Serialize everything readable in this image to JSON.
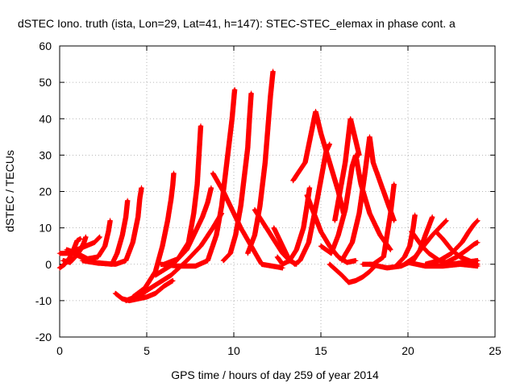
{
  "chart_data": {
    "type": "scatter",
    "title": "dSTEC Iono. truth (ista, Lon=29, Lat=41, h=147): STEC-STEC_elemax in phase cont. a",
    "xlabel": "GPS time / hours of day 259 of year 2014",
    "ylabel": "dSTEC  / TECUs",
    "xlim": [
      0,
      25
    ],
    "ylim": [
      -20,
      60
    ],
    "xticks": [
      "0",
      "5",
      "10",
      "15",
      "20",
      "25"
    ],
    "yticks": [
      "-20",
      "-10",
      "0",
      "10",
      "20",
      "30",
      "40",
      "50",
      "60"
    ],
    "grid": true,
    "marker": "+",
    "color": "#ff0000",
    "series": [
      {
        "points": [
          [
            0,
            -1
          ],
          [
            0.3,
            0
          ],
          [
            0.6,
            2
          ],
          [
            0.8,
            4
          ],
          [
            1.0,
            6.5
          ],
          [
            1.2,
            7
          ]
        ]
      },
      {
        "points": [
          [
            0.2,
            1
          ],
          [
            0.6,
            0.5
          ],
          [
            0.9,
            2
          ],
          [
            1.2,
            4
          ],
          [
            1.4,
            6
          ],
          [
            1.5,
            7.5
          ]
        ]
      },
      {
        "points": [
          [
            0,
            3
          ],
          [
            0.5,
            3
          ],
          [
            1,
            4
          ],
          [
            1.5,
            5
          ],
          [
            2,
            6
          ],
          [
            2.3,
            7.5
          ]
        ]
      },
      {
        "points": [
          [
            0.4,
            4
          ],
          [
            1,
            3
          ],
          [
            1.6,
            1.5
          ],
          [
            2.2,
            2
          ],
          [
            2.6,
            5
          ],
          [
            2.8,
            9
          ],
          [
            2.9,
            12
          ]
        ]
      },
      {
        "points": [
          [
            0.8,
            3
          ],
          [
            1.3,
            1.8
          ],
          [
            2,
            0.5
          ],
          [
            3,
            0
          ],
          [
            3.3,
            3
          ],
          [
            3.6,
            8
          ],
          [
            3.8,
            13
          ],
          [
            3.9,
            17.5
          ]
        ]
      },
      {
        "points": [
          [
            1.3,
            1
          ],
          [
            2.2,
            0.3
          ],
          [
            3.2,
            0
          ],
          [
            3.8,
            1
          ],
          [
            4.2,
            6
          ],
          [
            4.5,
            13
          ],
          [
            4.6,
            18
          ],
          [
            4.7,
            21
          ]
        ]
      },
      {
        "points": [
          [
            3.2,
            -8
          ],
          [
            3.6,
            -9.5
          ],
          [
            4,
            -10
          ],
          [
            4.5,
            -9.5
          ],
          [
            5,
            -9
          ],
          [
            5.5,
            -8
          ],
          [
            6,
            -6
          ],
          [
            6.5,
            -4.5
          ]
        ]
      },
      {
        "points": [
          [
            3.8,
            -10
          ],
          [
            4.6,
            -8.5
          ],
          [
            5.4,
            -6
          ],
          [
            6.4,
            -3
          ],
          [
            7.3,
            1
          ],
          [
            8.1,
            5
          ],
          [
            8.8,
            10
          ],
          [
            9.3,
            14
          ]
        ]
      },
      {
        "points": [
          [
            4.2,
            -9
          ],
          [
            4.9,
            -6.5
          ],
          [
            5.5,
            -2
          ],
          [
            5.9,
            5
          ],
          [
            6.2,
            12
          ],
          [
            6.4,
            18
          ],
          [
            6.5,
            22
          ],
          [
            6.55,
            25
          ]
        ]
      },
      {
        "points": [
          [
            5.5,
            -3
          ],
          [
            6.5,
            0
          ],
          [
            7.3,
            4
          ],
          [
            7.8,
            9
          ],
          [
            8.2,
            13
          ],
          [
            8.5,
            17
          ],
          [
            8.7,
            21
          ]
        ]
      },
      {
        "points": [
          [
            6,
            0
          ],
          [
            6.8,
            1.5
          ],
          [
            7.4,
            6
          ],
          [
            7.7,
            14
          ],
          [
            7.9,
            22
          ],
          [
            8.0,
            30
          ],
          [
            8.1,
            38
          ]
        ]
      },
      {
        "points": [
          [
            5.8,
            0
          ],
          [
            6.8,
            -0.5
          ],
          [
            7.8,
            -0.5
          ],
          [
            8.5,
            1
          ],
          [
            9,
            8
          ],
          [
            9.3,
            16
          ],
          [
            9.5,
            24
          ],
          [
            9.7,
            32
          ],
          [
            9.9,
            40
          ],
          [
            10.05,
            48
          ]
        ]
      },
      {
        "points": [
          [
            9.4,
            1
          ],
          [
            9.8,
            3
          ],
          [
            10.1,
            8
          ],
          [
            10.4,
            16
          ],
          [
            10.6,
            24
          ],
          [
            10.8,
            32
          ],
          [
            10.9,
            40
          ],
          [
            11.0,
            47
          ]
        ]
      },
      {
        "points": [
          [
            8.8,
            25
          ],
          [
            9.4,
            20
          ],
          [
            9.9,
            15
          ],
          [
            10.4,
            10
          ],
          [
            11.0,
            5
          ],
          [
            11.6,
            0
          ],
          [
            12.2,
            -0.5
          ],
          [
            12.8,
            -1
          ]
        ]
      },
      {
        "points": [
          [
            10.8,
            3
          ],
          [
            11.2,
            8
          ],
          [
            11.5,
            16
          ],
          [
            11.8,
            28
          ],
          [
            12.0,
            40
          ],
          [
            12.1,
            46
          ],
          [
            12.25,
            53
          ]
        ]
      },
      {
        "points": [
          [
            12.5,
            2
          ],
          [
            12.8,
            0
          ],
          [
            13.2,
            1
          ],
          [
            13.6,
            4
          ],
          [
            14.0,
            10
          ],
          [
            14.2,
            16
          ],
          [
            14.35,
            21
          ]
        ]
      },
      {
        "points": [
          [
            11.2,
            15
          ],
          [
            11.6,
            12
          ],
          [
            12.0,
            9
          ],
          [
            12.4,
            6
          ],
          [
            12.8,
            3
          ],
          [
            13.2,
            1
          ],
          [
            13.6,
            0
          ]
        ]
      },
      {
        "points": [
          [
            12.3,
            10
          ],
          [
            12.7,
            6
          ],
          [
            13.1,
            2
          ],
          [
            13.5,
            0
          ],
          [
            13.8,
            1
          ],
          [
            14.3,
            6
          ],
          [
            14.8,
            18
          ],
          [
            15.3,
            31
          ],
          [
            15.5,
            33
          ]
        ]
      },
      {
        "points": [
          [
            14.2,
            19
          ],
          [
            14.6,
            14
          ],
          [
            15.0,
            9
          ],
          [
            15.5,
            5
          ],
          [
            16.0,
            2
          ],
          [
            16.5,
            0.5
          ],
          [
            17.0,
            1
          ]
        ]
      },
      {
        "points": [
          [
            13.4,
            23
          ],
          [
            14.1,
            28
          ],
          [
            14.7,
            42
          ],
          [
            15.0,
            36
          ],
          [
            15.5,
            28
          ],
          [
            16.0,
            20
          ],
          [
            16.3,
            14
          ]
        ]
      },
      {
        "points": [
          [
            15.5,
            0
          ],
          [
            16.2,
            -3
          ],
          [
            16.6,
            -5
          ],
          [
            17.0,
            -4.5
          ],
          [
            17.4,
            -3.5
          ],
          [
            17.8,
            -2
          ],
          [
            18.2,
            0
          ]
        ]
      },
      {
        "points": [
          [
            15.8,
            12
          ],
          [
            16.1,
            20
          ],
          [
            16.4,
            28
          ],
          [
            16.6,
            36
          ],
          [
            16.7,
            40
          ],
          [
            16.9,
            36
          ],
          [
            17.2,
            30
          ]
        ]
      },
      {
        "points": [
          [
            15.0,
            5
          ],
          [
            15.6,
            3
          ],
          [
            16.0,
            8
          ],
          [
            16.4,
            15
          ],
          [
            16.8,
            27
          ],
          [
            17.0,
            30
          ],
          [
            17.3,
            22
          ],
          [
            17.8,
            14
          ],
          [
            18.4,
            8
          ],
          [
            19.0,
            4
          ]
        ]
      },
      {
        "points": [
          [
            16.2,
            1
          ],
          [
            16.8,
            6
          ],
          [
            17.2,
            14
          ],
          [
            17.5,
            24
          ],
          [
            17.8,
            35
          ],
          [
            18.0,
            28
          ],
          [
            18.6,
            20
          ],
          [
            19.2,
            12
          ]
        ]
      },
      {
        "points": [
          [
            17.4,
            0
          ],
          [
            18.0,
            0
          ],
          [
            18.6,
            2
          ],
          [
            18.8,
            8
          ],
          [
            19.0,
            14
          ],
          [
            19.2,
            22
          ]
        ]
      },
      {
        "points": [
          [
            17.8,
            0
          ],
          [
            18.8,
            -1
          ],
          [
            19.6,
            -0.5
          ],
          [
            20.3,
            1
          ],
          [
            20.7,
            4
          ],
          [
            21.0,
            8
          ],
          [
            21.4,
            13
          ]
        ]
      },
      {
        "points": [
          [
            19.4,
            0
          ],
          [
            19.8,
            2
          ],
          [
            20.1,
            5
          ],
          [
            20.3,
            10
          ],
          [
            20.4,
            13.5
          ]
        ]
      },
      {
        "points": [
          [
            19.8,
            0
          ],
          [
            20.4,
            2
          ],
          [
            20.9,
            5
          ],
          [
            21.4,
            8
          ],
          [
            21.8,
            10
          ],
          [
            22.2,
            12
          ]
        ]
      },
      {
        "points": [
          [
            20.2,
            9
          ],
          [
            20.5,
            7
          ],
          [
            20.8,
            5
          ],
          [
            21.2,
            3
          ],
          [
            21.8,
            1
          ],
          [
            22.5,
            0
          ],
          [
            23.2,
            0.5
          ],
          [
            24.0,
            1
          ]
        ]
      },
      {
        "points": [
          [
            21.6,
            9
          ],
          [
            22.0,
            7
          ],
          [
            22.5,
            4
          ],
          [
            23.0,
            2
          ],
          [
            23.5,
            1
          ],
          [
            24.0,
            0
          ]
        ]
      },
      {
        "points": [
          [
            21.0,
            0
          ],
          [
            21.8,
            1
          ],
          [
            22.5,
            3
          ],
          [
            23.1,
            6
          ],
          [
            23.5,
            9
          ],
          [
            23.8,
            11
          ],
          [
            24.0,
            12
          ]
        ]
      },
      {
        "points": [
          [
            20.0,
            0.5
          ],
          [
            21.0,
            -0.5
          ],
          [
            22.0,
            -0.5
          ],
          [
            23.0,
            0
          ],
          [
            24.0,
            -0.5
          ]
        ]
      },
      {
        "points": [
          [
            22.0,
            0
          ],
          [
            22.8,
            2
          ],
          [
            23.4,
            4
          ],
          [
            23.8,
            5.5
          ],
          [
            24.0,
            6
          ]
        ]
      }
    ]
  }
}
